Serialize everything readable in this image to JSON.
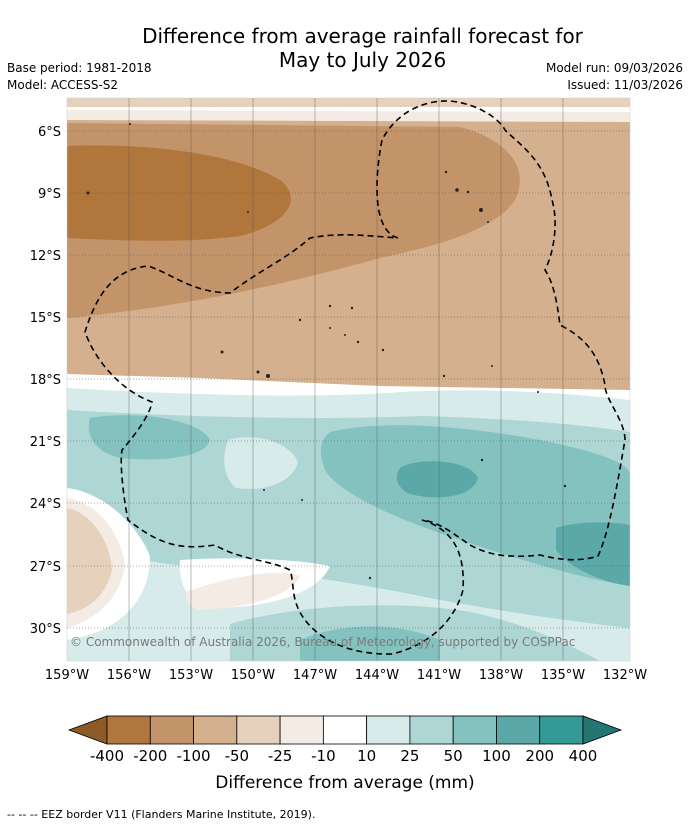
{
  "title_line1": "Difference from average rainfall forecast for",
  "title_line2": "May to July 2026",
  "base_period": "Base period: 1981-2018",
  "model": "Model: ACCESS-S2",
  "model_run": "Model run: 09/03/2026",
  "issued": "Issued: 11/03/2026",
  "copyright": "© Commonwealth of Australia 2026, Bureau of Meteorology, supported by COSPPac",
  "x_ticks": [
    "159°W",
    "156°W",
    "153°W",
    "150°W",
    "147°W",
    "144°W",
    "141°W",
    "138°W",
    "135°W",
    "132°W"
  ],
  "y_ticks": [
    "6°S",
    "9°S",
    "12°S",
    "15°S",
    "18°S",
    "21°S",
    "24°S",
    "27°S",
    "30°S"
  ],
  "colorbar": {
    "title": "Difference from average (mm)",
    "labels": [
      "-400",
      "-200",
      "-100",
      "-50",
      "-25",
      "-10",
      "10",
      "25",
      "50",
      "100",
      "200",
      "400"
    ],
    "colors": [
      "#8e5a26",
      "#b0763c",
      "#c39469",
      "#d4b08e",
      "#e6d1bd",
      "#f4ebe4",
      "#ffffff",
      "#d6ebea",
      "#aed6d4",
      "#84c2c0",
      "#5aa9a8",
      "#349a96",
      "#257573"
    ]
  },
  "legend_footer": "--  --  -- EEZ border V11 (Flanders Marine Institute, 2019)."
}
